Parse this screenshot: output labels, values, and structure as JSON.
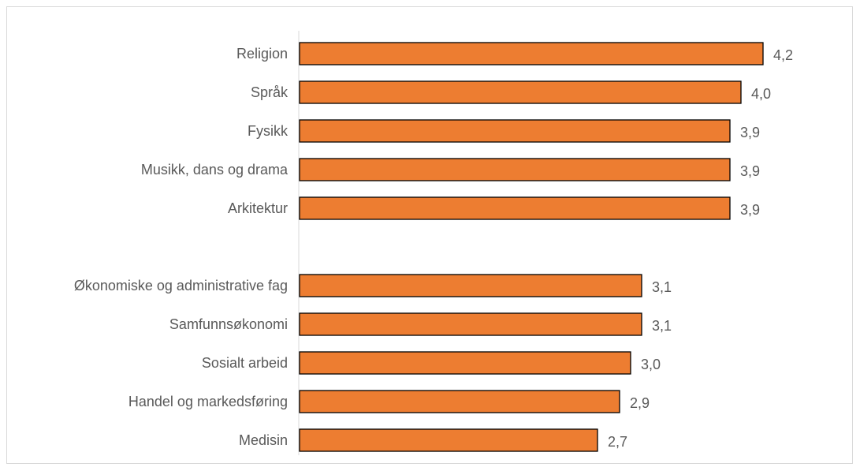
{
  "chart_data": {
    "type": "bar",
    "orientation": "horizontal",
    "title": "",
    "xlabel": "",
    "ylabel": "",
    "xlim": [
      0,
      4.2
    ],
    "grid": false,
    "legend": "none",
    "colors": {
      "bar_fill": "#ED7D31",
      "bar_stroke": "#000000",
      "axis": "#d9d9d9",
      "label_text": "#595959"
    },
    "categories": [
      "Religion",
      "Språk",
      "Fysikk",
      "Musikk, dans og drama",
      "Arkitektur",
      "",
      "Økonomiske og administrative fag",
      "Samfunnsøkonomi",
      "Sosialt arbeid",
      "Handel og markedsføring",
      "Medisin"
    ],
    "values": [
      4.2,
      4.0,
      3.9,
      3.9,
      3.9,
      null,
      3.1,
      3.1,
      3.0,
      2.9,
      2.7
    ],
    "data_labels": [
      "4,2",
      "4,0",
      "3,9",
      "3,9",
      "3,9",
      "",
      "3,1",
      "3,1",
      "3,0",
      "2,9",
      "2,7"
    ]
  }
}
